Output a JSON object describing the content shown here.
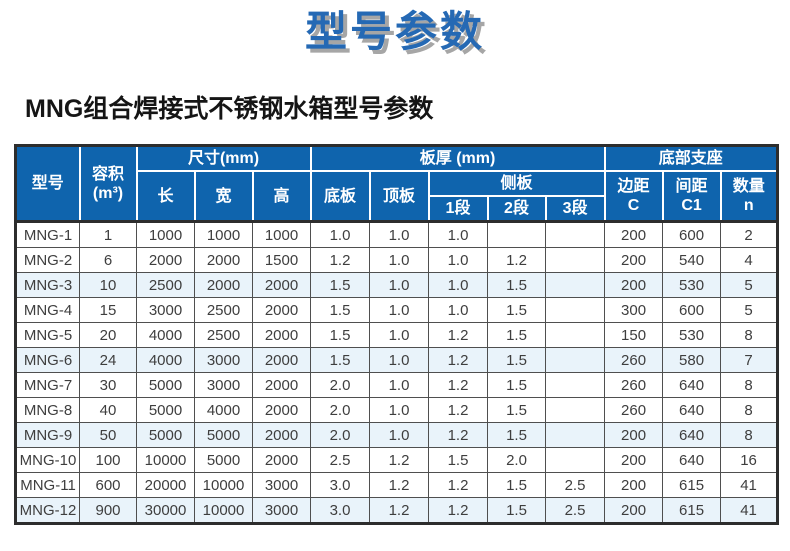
{
  "page": {
    "title": "型号参数",
    "subtitle": "MNG组合焊接式不锈钢水箱型号参数"
  },
  "colors": {
    "header_bg": "#0f64ad",
    "title_blue": "#2569b4",
    "title_shadow": "#a6a6a6",
    "alt_row_bg": "#e9f3fa",
    "outer_border": "#2d2d2d",
    "cell_border": "#4f4f4f"
  },
  "table": {
    "headers": {
      "model": "型号",
      "volume_line1": "容积",
      "volume_line2": "(m³)",
      "size_group": "尺寸(mm)",
      "length": "长",
      "width": "宽",
      "height": "高",
      "thickness_group": "板厚 (mm)",
      "bottom_plate": "底板",
      "top_plate": "顶板",
      "side_plate_group": "侧板",
      "seg1": "1段",
      "seg2": "2段",
      "seg3": "3段",
      "support_group": "底部支座",
      "edge_line1": "边距",
      "edge_line2": "C",
      "spacing_line1": "间距",
      "spacing_line2": "C1",
      "qty_line1": "数量",
      "qty_line2": "n"
    },
    "column_keys": [
      "model",
      "volume",
      "length",
      "width",
      "height",
      "bottom-plate",
      "top-plate",
      "side-seg1",
      "side-seg2",
      "side-seg3",
      "edge-c",
      "spacing-c1",
      "qty-n"
    ],
    "rows": [
      [
        "MNG-1",
        "1",
        "1000",
        "1000",
        "1000",
        "1.0",
        "1.0",
        "1.0",
        "",
        "",
        "200",
        "600",
        "2"
      ],
      [
        "MNG-2",
        "6",
        "2000",
        "2000",
        "1500",
        "1.2",
        "1.0",
        "1.0",
        "1.2",
        "",
        "200",
        "540",
        "4"
      ],
      [
        "MNG-3",
        "10",
        "2500",
        "2000",
        "2000",
        "1.5",
        "1.0",
        "1.0",
        "1.5",
        "",
        "200",
        "530",
        "5"
      ],
      [
        "MNG-4",
        "15",
        "3000",
        "2500",
        "2000",
        "1.5",
        "1.0",
        "1.0",
        "1.5",
        "",
        "300",
        "600",
        "5"
      ],
      [
        "MNG-5",
        "20",
        "4000",
        "2500",
        "2000",
        "1.5",
        "1.0",
        "1.2",
        "1.5",
        "",
        "150",
        "530",
        "8"
      ],
      [
        "MNG-6",
        "24",
        "4000",
        "3000",
        "2000",
        "1.5",
        "1.0",
        "1.2",
        "1.5",
        "",
        "260",
        "580",
        "7"
      ],
      [
        "MNG-7",
        "30",
        "5000",
        "3000",
        "2000",
        "2.0",
        "1.0",
        "1.2",
        "1.5",
        "",
        "260",
        "640",
        "8"
      ],
      [
        "MNG-8",
        "40",
        "5000",
        "4000",
        "2000",
        "2.0",
        "1.0",
        "1.2",
        "1.5",
        "",
        "260",
        "640",
        "8"
      ],
      [
        "MNG-9",
        "50",
        "5000",
        "5000",
        "2000",
        "2.0",
        "1.0",
        "1.2",
        "1.5",
        "",
        "200",
        "640",
        "8"
      ],
      [
        "MNG-10",
        "100",
        "10000",
        "5000",
        "2000",
        "2.5",
        "1.2",
        "1.5",
        "2.0",
        "",
        "200",
        "640",
        "16"
      ],
      [
        "MNG-11",
        "600",
        "20000",
        "10000",
        "3000",
        "3.0",
        "1.2",
        "1.2",
        "1.5",
        "2.5",
        "200",
        "615",
        "41"
      ],
      [
        "MNG-12",
        "900",
        "30000",
        "10000",
        "3000",
        "3.0",
        "1.2",
        "1.2",
        "1.5",
        "2.5",
        "200",
        "615",
        "41"
      ]
    ]
  }
}
